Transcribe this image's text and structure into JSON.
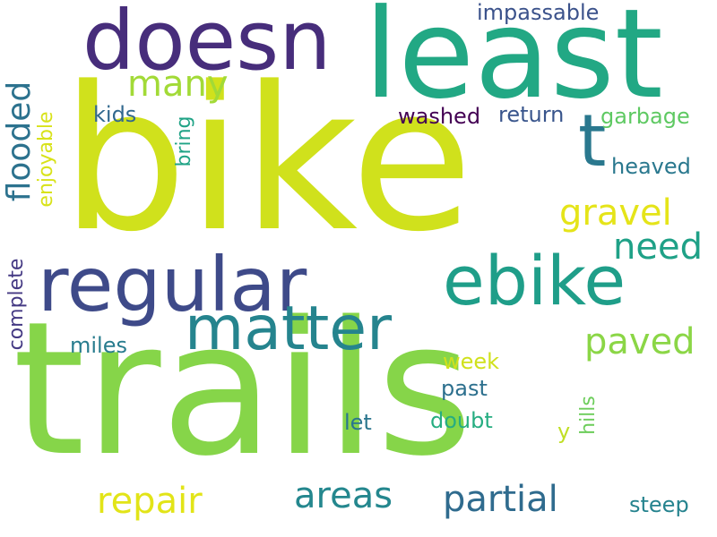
{
  "words": [
    {
      "key": "bike",
      "text": "bike",
      "color": "#d0e11c"
    },
    {
      "key": "trails",
      "text": "trails",
      "color": "#86d549"
    },
    {
      "key": "least",
      "text": "least",
      "color": "#22a884"
    },
    {
      "key": "doesn",
      "text": "doesn",
      "color": "#472d7b"
    },
    {
      "key": "regular",
      "text": "regular",
      "color": "#3e4a89"
    },
    {
      "key": "ebike",
      "text": "ebike",
      "color": "#1f9e89"
    },
    {
      "key": "matter",
      "text": "matter",
      "color": "#25848e"
    },
    {
      "key": "t",
      "text": "t",
      "color": "#2a788e"
    },
    {
      "key": "many",
      "text": "many",
      "color": "#a2da37"
    },
    {
      "key": "impassable",
      "text": "impassable",
      "color": "#3b528b"
    },
    {
      "key": "flooded",
      "text": "flooded",
      "color": "#2c728e"
    },
    {
      "key": "enjoyable",
      "text": "enjoyable",
      "color": "#d8e219"
    },
    {
      "key": "kids",
      "text": "kids",
      "color": "#31688e"
    },
    {
      "key": "bring",
      "text": "bring",
      "color": "#20a386"
    },
    {
      "key": "washed",
      "text": "washed",
      "color": "#440154"
    },
    {
      "key": "return",
      "text": "return",
      "color": "#39558c"
    },
    {
      "key": "garbage",
      "text": "garbage",
      "color": "#5ec962"
    },
    {
      "key": "heaved",
      "text": "heaved",
      "color": "#2a788e"
    },
    {
      "key": "gravel",
      "text": "gravel",
      "color": "#e5e419"
    },
    {
      "key": "need",
      "text": "need",
      "color": "#1fa187"
    },
    {
      "key": "complete",
      "text": "complete",
      "color": "#443983"
    },
    {
      "key": "paved",
      "text": "paved",
      "color": "#8bd646"
    },
    {
      "key": "miles",
      "text": "miles",
      "color": "#287c8e"
    },
    {
      "key": "week",
      "text": "week",
      "color": "#d0e11c"
    },
    {
      "key": "past",
      "text": "past",
      "color": "#2d708e"
    },
    {
      "key": "hills",
      "text": "hills",
      "color": "#6ccd5a"
    },
    {
      "key": "doubt",
      "text": "doubt",
      "color": "#26ad81"
    },
    {
      "key": "let",
      "text": "let",
      "color": "#2a768e"
    },
    {
      "key": "y",
      "text": "y",
      "color": "#c0df25"
    },
    {
      "key": "repair",
      "text": "repair",
      "color": "#e2e418"
    },
    {
      "key": "areas",
      "text": "areas",
      "color": "#24878e"
    },
    {
      "key": "partial",
      "text": "partial",
      "color": "#2f6b8e"
    },
    {
      "key": "steep",
      "text": "steep",
      "color": "#25838e"
    }
  ]
}
